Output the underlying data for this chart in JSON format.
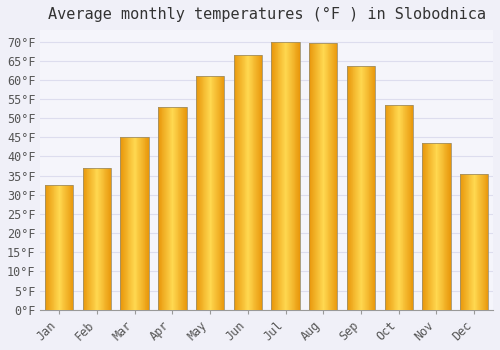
{
  "title": "Average monthly temperatures (°F ) in Slobodnica",
  "months": [
    "Jan",
    "Feb",
    "Mar",
    "Apr",
    "May",
    "Jun",
    "Jul",
    "Aug",
    "Sep",
    "Oct",
    "Nov",
    "Dec"
  ],
  "values": [
    32.5,
    37,
    45,
    53,
    61,
    66.5,
    70,
    69.5,
    63.5,
    53.5,
    43.5,
    35.5
  ],
  "bar_color_light": "#FFD055",
  "bar_color_main": "#FFAB00",
  "bar_color_dark": "#E8960A",
  "bar_edge_color": "#A0916B",
  "background_color": "#F0F0F8",
  "plot_bg_color": "#F5F5FB",
  "grid_color": "#DDDDEE",
  "ylim": [
    0,
    73
  ],
  "yticks": [
    0,
    5,
    10,
    15,
    20,
    25,
    30,
    35,
    40,
    45,
    50,
    55,
    60,
    65,
    70
  ],
  "ylabel_suffix": "°F",
  "title_fontsize": 11,
  "tick_fontsize": 8.5,
  "font_family": "monospace"
}
